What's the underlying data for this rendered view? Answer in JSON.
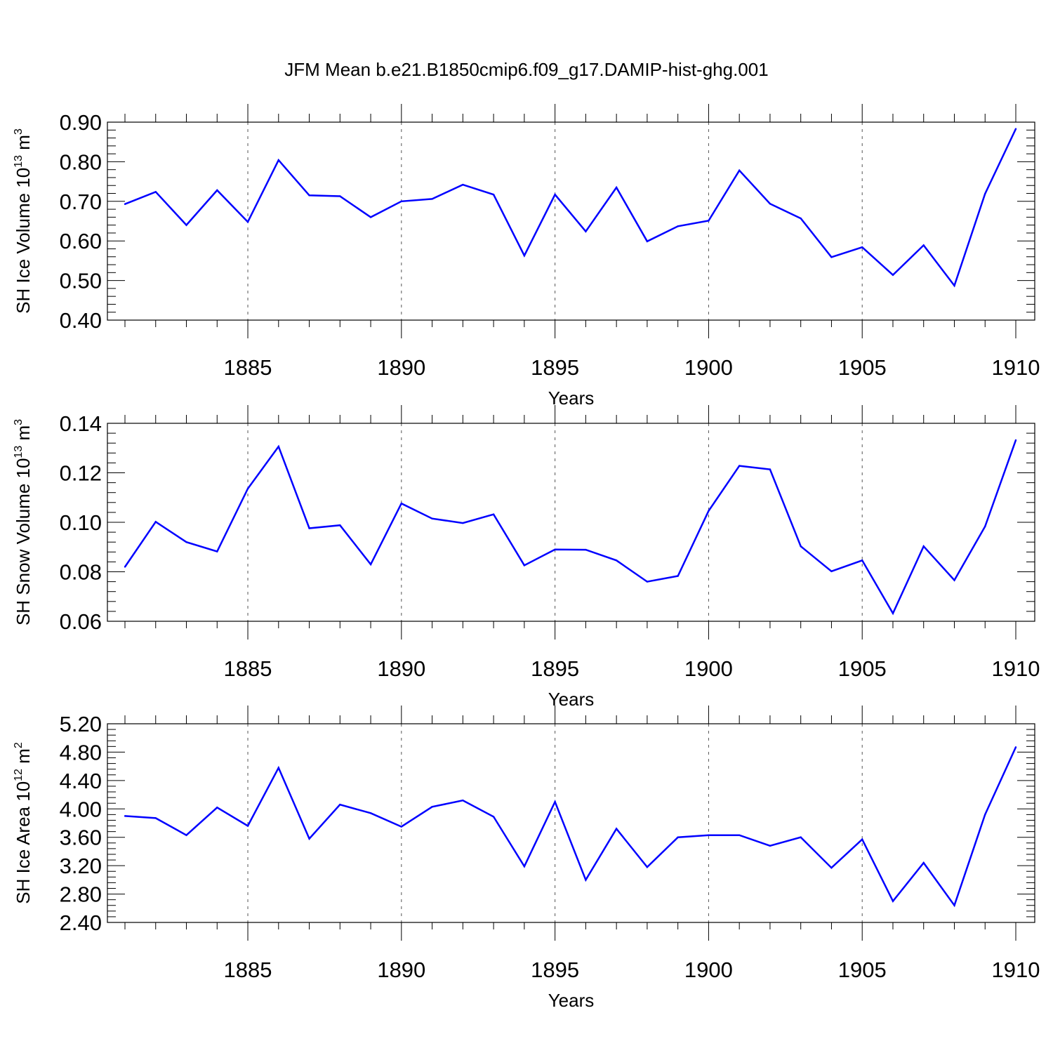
{
  "title": "JFM Mean b.e21.B1850cmip6.f09_g17.DAMIP-hist-ghg.001",
  "colors": {
    "line": "#0000ff",
    "axis": "#000000",
    "grid": "#555555"
  },
  "chart_data": [
    {
      "type": "line",
      "name": "sh-ice-volume",
      "xlabel": "Years",
      "ylabel": "SH Ice Volume 10",
      "ylabel_exp": "13",
      "ylabel_unit": " m",
      "ylabel_unit_exp": "3",
      "xlim": [
        1881,
        1910
      ],
      "ylim": [
        0.4,
        0.9
      ],
      "xticks": [
        1885,
        1890,
        1895,
        1900,
        1905,
        1910
      ],
      "yticks": [
        0.4,
        0.5,
        0.6,
        0.7,
        0.8,
        0.9
      ],
      "ytick_labels": [
        "0.40",
        "0.50",
        "0.60",
        "0.70",
        "0.80",
        "0.90"
      ],
      "x": [
        1881,
        1882,
        1883,
        1884,
        1885,
        1886,
        1887,
        1888,
        1889,
        1890,
        1891,
        1892,
        1893,
        1894,
        1895,
        1896,
        1897,
        1898,
        1899,
        1900,
        1901,
        1902,
        1903,
        1904,
        1905,
        1906,
        1907,
        1908,
        1909,
        1910
      ],
      "values": [
        0.693,
        0.724,
        0.64,
        0.728,
        0.648,
        0.804,
        0.715,
        0.713,
        0.66,
        0.7,
        0.706,
        0.742,
        0.717,
        0.563,
        0.717,
        0.624,
        0.735,
        0.599,
        0.637,
        0.651,
        0.778,
        0.694,
        0.657,
        0.559,
        0.584,
        0.514,
        0.589,
        0.487,
        0.719,
        0.883
      ]
    },
    {
      "type": "line",
      "name": "sh-snow-volume",
      "xlabel": "Years",
      "ylabel": "SH Snow Volume 10",
      "ylabel_exp": "13",
      "ylabel_unit": " m",
      "ylabel_unit_exp": "3",
      "xlim": [
        1881,
        1910
      ],
      "ylim": [
        0.06,
        0.14
      ],
      "xticks": [
        1885,
        1890,
        1895,
        1900,
        1905,
        1910
      ],
      "yticks": [
        0.06,
        0.08,
        0.1,
        0.12,
        0.14
      ],
      "ytick_labels": [
        "0.06",
        "0.08",
        "0.10",
        "0.12",
        "0.14"
      ],
      "x": [
        1881,
        1882,
        1883,
        1884,
        1885,
        1886,
        1887,
        1888,
        1889,
        1890,
        1891,
        1892,
        1893,
        1894,
        1895,
        1896,
        1897,
        1898,
        1899,
        1900,
        1901,
        1902,
        1903,
        1904,
        1905,
        1906,
        1907,
        1908,
        1909,
        1910
      ],
      "values": [
        0.082,
        0.1002,
        0.092,
        0.0882,
        0.1136,
        0.1306,
        0.0976,
        0.0988,
        0.083,
        0.1076,
        0.1015,
        0.0997,
        0.1032,
        0.0826,
        0.089,
        0.0889,
        0.0846,
        0.076,
        0.0783,
        0.1046,
        0.1228,
        0.1214,
        0.0903,
        0.0802,
        0.0846,
        0.0632,
        0.0903,
        0.0766,
        0.0983,
        0.1332
      ]
    },
    {
      "type": "line",
      "name": "sh-ice-area",
      "xlabel": "Years",
      "ylabel": "SH Ice Area 10",
      "ylabel_exp": "12",
      "ylabel_unit": " m",
      "ylabel_unit_exp": "2",
      "xlim": [
        1881,
        1910
      ],
      "ylim": [
        2.4,
        5.2
      ],
      "xticks": [
        1885,
        1890,
        1895,
        1900,
        1905,
        1910
      ],
      "yticks": [
        2.4,
        2.8,
        3.2,
        3.6,
        4.0,
        4.4,
        4.8,
        5.2
      ],
      "ytick_labels": [
        "2.40",
        "2.80",
        "3.20",
        "3.60",
        "4.00",
        "4.40",
        "4.80",
        "5.20"
      ],
      "x": [
        1881,
        1882,
        1883,
        1884,
        1885,
        1886,
        1887,
        1888,
        1889,
        1890,
        1891,
        1892,
        1893,
        1894,
        1895,
        1896,
        1897,
        1898,
        1899,
        1900,
        1901,
        1902,
        1903,
        1904,
        1905,
        1906,
        1907,
        1908,
        1909,
        1910
      ],
      "values": [
        3.9,
        3.87,
        3.63,
        4.02,
        3.76,
        4.58,
        3.58,
        4.06,
        3.94,
        3.75,
        4.03,
        4.12,
        3.89,
        3.19,
        4.1,
        3.0,
        3.72,
        3.18,
        3.6,
        3.63,
        3.63,
        3.48,
        3.6,
        3.17,
        3.57,
        2.7,
        3.24,
        2.64,
        3.92,
        4.87
      ]
    }
  ]
}
